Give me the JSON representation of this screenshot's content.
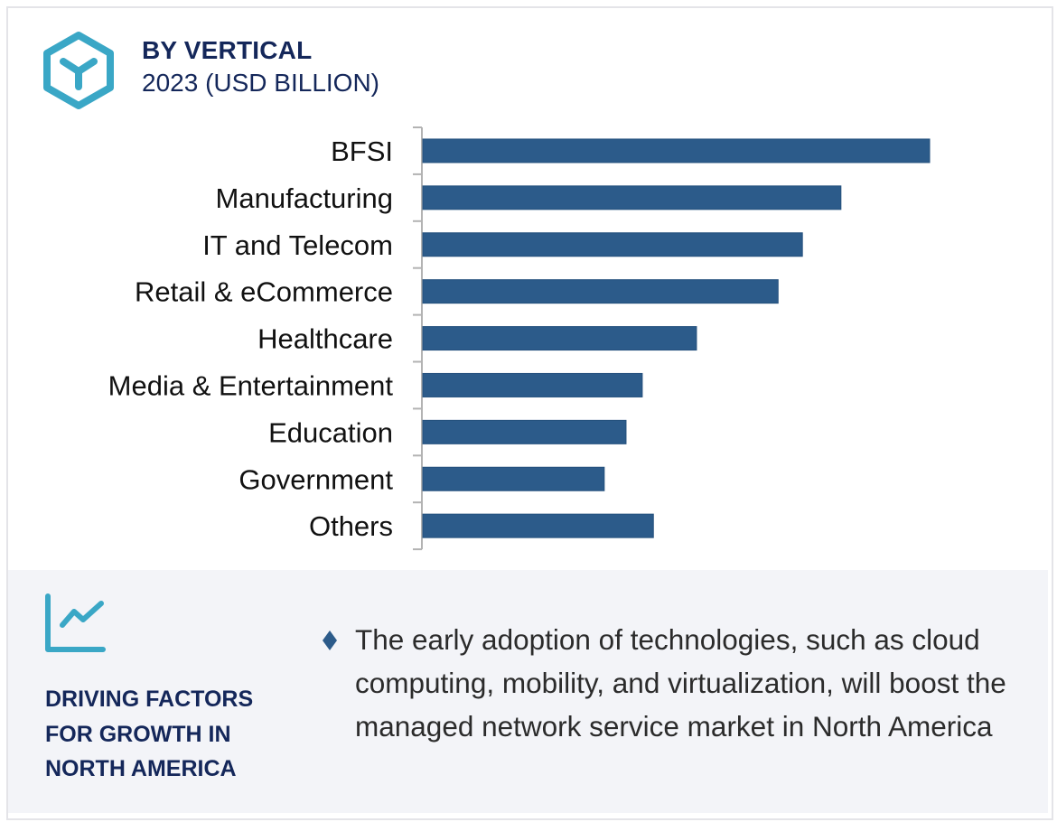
{
  "header": {
    "icon": "hexagon-y-icon",
    "title": "BY VERTICAL",
    "subtitle": "2023 (USD BILLION)"
  },
  "colors": {
    "accent": "#3aa7c6",
    "bar": "#2c5b8a",
    "title": "#14275a",
    "axis": "#b3b3b3",
    "panel_bg": "#f3f4f8"
  },
  "chart_data": {
    "type": "bar",
    "orientation": "horizontal",
    "title": "BY VERTICAL",
    "subtitle": "2023 (USD BILLION)",
    "xlabel": "",
    "ylabel": "",
    "value_axis_shown": false,
    "grid": false,
    "legend": "none",
    "value_scale_note": "relative values (no numeric axis shown); BFSI = 100",
    "xlim": [
      0,
      100
    ],
    "categories": [
      "BFSI",
      "Manufacturing",
      "IT and Telecom",
      "Retail & eCommerce",
      "Healthcare",
      "Media & Entertainment",
      "Education",
      "Government",
      "Others"
    ],
    "values": [
      100,
      82.5,
      74.9,
      70.1,
      54.0,
      43.3,
      40.1,
      35.8,
      45.5
    ]
  },
  "panel": {
    "icon": "line-chart-icon",
    "title_lines": [
      "DRIVING FACTORS",
      "FOR GROWTH IN",
      "NORTH AMERICA"
    ],
    "bullet_icon": "diamond-bullet-icon",
    "text": "The early adoption of technologies, such as cloud computing, mobility, and virtualization, will boost the managed network service market in North America"
  }
}
